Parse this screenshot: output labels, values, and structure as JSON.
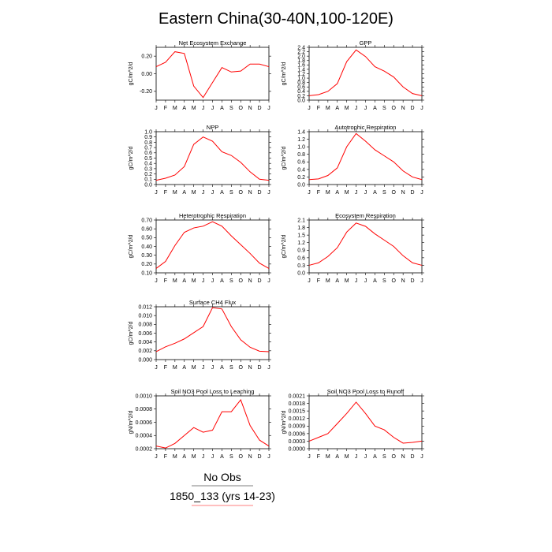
{
  "figure": {
    "title": "Eastern China(30-40N,100-120E)",
    "line_color": "#ff0000",
    "legend": {
      "no_obs_label": "No Obs",
      "case_label": "1850_133 (yrs 14-23)",
      "no_obs_color": "#000000",
      "case_color": "#ff0000"
    }
  },
  "chart_data": [
    {
      "type": "line",
      "title": "Net Ecosystem Exchange",
      "ylabel": "gC/m^2/d",
      "categories": [
        "J",
        "F",
        "M",
        "A",
        "M",
        "J",
        "J",
        "A",
        "S",
        "O",
        "N",
        "D",
        "J"
      ],
      "values": [
        0.08,
        0.13,
        0.25,
        0.23,
        -0.14,
        -0.27,
        -0.1,
        0.07,
        0.02,
        0.03,
        0.11,
        0.11,
        0.08
      ],
      "ylim": [
        -0.3,
        0.3
      ],
      "yticks": [
        -0.2,
        0.0,
        0.2
      ],
      "ytick_labels": [
        "-0.20",
        "0.00",
        "0.20"
      ]
    },
    {
      "type": "line",
      "title": "GPP",
      "ylabel": "gC/m^2/d",
      "categories": [
        "J",
        "F",
        "M",
        "A",
        "M",
        "J",
        "J",
        "A",
        "S",
        "O",
        "N",
        "D",
        "J"
      ],
      "values": [
        0.2,
        0.25,
        0.4,
        0.75,
        1.75,
        2.28,
        1.98,
        1.52,
        1.32,
        1.05,
        0.6,
        0.3,
        0.2
      ],
      "ylim": [
        0,
        2.4
      ],
      "yticks": [
        0,
        0.2,
        0.4,
        0.6,
        0.8,
        1.0,
        1.2,
        1.4,
        1.6,
        1.8,
        2.0,
        2.2,
        2.4
      ],
      "ytick_labels": [
        "0.0",
        "0.2",
        "0.4",
        "0.6",
        "0.8",
        "1.0",
        "1.2",
        "1.4",
        "1.6",
        "1.8",
        "2.0",
        "2.2",
        "2.4"
      ]
    },
    {
      "type": "line",
      "title": "NPP",
      "ylabel": "gC/m^2/d",
      "categories": [
        "J",
        "F",
        "M",
        "A",
        "M",
        "J",
        "J",
        "A",
        "S",
        "O",
        "N",
        "D",
        "J"
      ],
      "values": [
        0.08,
        0.12,
        0.18,
        0.34,
        0.76,
        0.9,
        0.82,
        0.62,
        0.55,
        0.42,
        0.24,
        0.1,
        0.08
      ],
      "ylim": [
        0,
        1.0
      ],
      "yticks": [
        0,
        0.1,
        0.2,
        0.3,
        0.4,
        0.5,
        0.6,
        0.7,
        0.8,
        0.9,
        1.0
      ],
      "ytick_labels": [
        "0.0",
        "0.1",
        "0.2",
        "0.3",
        "0.4",
        "0.5",
        "0.6",
        "0.7",
        "0.8",
        "0.9",
        "1.0"
      ]
    },
    {
      "type": "line",
      "title": "Autotrophic Respiration",
      "ylabel": "gC/m^2/d",
      "categories": [
        "J",
        "F",
        "M",
        "A",
        "M",
        "J",
        "J",
        "A",
        "S",
        "O",
        "N",
        "D",
        "J"
      ],
      "values": [
        0.13,
        0.15,
        0.24,
        0.44,
        1.0,
        1.35,
        1.15,
        0.92,
        0.76,
        0.6,
        0.36,
        0.2,
        0.13
      ],
      "ylim": [
        0,
        1.4
      ],
      "yticks": [
        0,
        0.2,
        0.4,
        0.6,
        0.8,
        1.0,
        1.2,
        1.4
      ],
      "ytick_labels": [
        "0.0",
        "0.2",
        "0.4",
        "0.6",
        "0.8",
        "1.0",
        "1.2",
        "1.4"
      ]
    },
    {
      "type": "line",
      "title": "Heterotrophic Respiration",
      "ylabel": "gC/m^2/d",
      "categories": [
        "J",
        "F",
        "M",
        "A",
        "M",
        "J",
        "J",
        "A",
        "S",
        "O",
        "N",
        "D",
        "J"
      ],
      "values": [
        0.15,
        0.23,
        0.41,
        0.56,
        0.61,
        0.63,
        0.68,
        0.63,
        0.52,
        0.42,
        0.32,
        0.21,
        0.15
      ],
      "ylim": [
        0.1,
        0.7
      ],
      "yticks": [
        0.1,
        0.2,
        0.3,
        0.4,
        0.5,
        0.6,
        0.7
      ],
      "ytick_labels": [
        "0.10",
        "0.20",
        "0.30",
        "0.40",
        "0.50",
        "0.60",
        "0.70"
      ]
    },
    {
      "type": "line",
      "title": "Ecosystem Respiration",
      "ylabel": "gC/m^2/d",
      "categories": [
        "J",
        "F",
        "M",
        "A",
        "M",
        "J",
        "J",
        "A",
        "S",
        "O",
        "N",
        "D",
        "J"
      ],
      "values": [
        0.3,
        0.4,
        0.65,
        1.0,
        1.62,
        1.98,
        1.85,
        1.55,
        1.3,
        1.05,
        0.68,
        0.4,
        0.3
      ],
      "ylim": [
        0,
        2.1
      ],
      "yticks": [
        0,
        0.3,
        0.6,
        0.9,
        1.2,
        1.5,
        1.8,
        2.1
      ],
      "ytick_labels": [
        "0.0",
        "0.3",
        "0.6",
        "0.9",
        "1.2",
        "1.5",
        "1.8",
        "2.1"
      ]
    },
    {
      "type": "line",
      "title": "Surface CH4 Flux",
      "ylabel": "gC/m^2/d",
      "categories": [
        "J",
        "F",
        "M",
        "A",
        "M",
        "J",
        "J",
        "A",
        "S",
        "O",
        "N",
        "D",
        "J"
      ],
      "values": [
        0.0018,
        0.0029,
        0.0037,
        0.0047,
        0.0061,
        0.0075,
        0.0118,
        0.0115,
        0.0075,
        0.0045,
        0.0028,
        0.0019,
        0.0018
      ],
      "ylim": [
        0,
        0.012
      ],
      "yticks": [
        0,
        0.002,
        0.004,
        0.006,
        0.008,
        0.01,
        0.012
      ],
      "ytick_labels": [
        "0.000",
        "0.002",
        "0.004",
        "0.006",
        "0.008",
        "0.010",
        "0.012"
      ]
    },
    {
      "type": "line",
      "title": "Soil NO3 Pool Loss to Leaching",
      "ylabel": "gN/m^2/d",
      "categories": [
        "J",
        "F",
        "M",
        "A",
        "M",
        "J",
        "J",
        "A",
        "S",
        "O",
        "N",
        "D",
        "J"
      ],
      "values": [
        0.00024,
        0.00021,
        0.00028,
        0.0004,
        0.00052,
        0.00045,
        0.00048,
        0.00076,
        0.00076,
        0.00094,
        0.00055,
        0.00033,
        0.00024
      ],
      "ylim": [
        0.0002,
        0.001
      ],
      "yticks": [
        0.0002,
        0.0004,
        0.0006,
        0.0008,
        0.001
      ],
      "ytick_labels": [
        "0.0002",
        "0.0004",
        "0.0006",
        "0.0008",
        "0.0010"
      ]
    },
    {
      "type": "line",
      "title": "Soil NO3 Pool Loss to Runoff",
      "ylabel": "gN/m^2/d",
      "categories": [
        "J",
        "F",
        "M",
        "A",
        "M",
        "J",
        "J",
        "A",
        "S",
        "O",
        "N",
        "D",
        "J"
      ],
      "values": [
        0.0003,
        0.00045,
        0.0006,
        0.001,
        0.0014,
        0.00185,
        0.0014,
        0.0009,
        0.00075,
        0.00045,
        0.00022,
        0.00025,
        0.0003
      ],
      "ylim": [
        0,
        0.0021
      ],
      "yticks": [
        0,
        0.0003,
        0.0006,
        0.0009,
        0.0012,
        0.0015,
        0.0018,
        0.0021
      ],
      "ytick_labels": [
        "0.0000",
        "0.0003",
        "0.0006",
        "0.0009",
        "0.0012",
        "0.0015",
        "0.0018",
        "0.0021"
      ]
    }
  ]
}
